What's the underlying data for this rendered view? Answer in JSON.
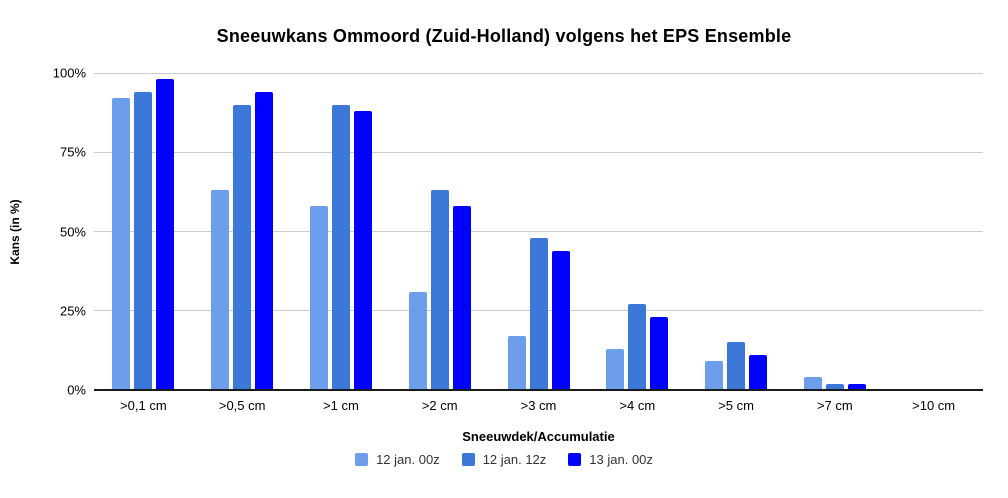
{
  "page": {
    "background": "#ffffff"
  },
  "chart_data": {
    "type": "bar",
    "title": "Sneeuwkans Ommoord (Zuid-Holland) volgens het EPS Ensemble",
    "xlabel": "Sneeuwdek/Accumulatie",
    "ylabel": "Kans (in %)",
    "categories": [
      ">0,1 cm",
      ">0,5 cm",
      ">1 cm",
      ">2 cm",
      ">3 cm",
      ">4 cm",
      ">5 cm",
      ">7 cm",
      ">10 cm"
    ],
    "series": [
      {
        "name": "12 jan. 00z",
        "color": "#6d9eeb",
        "values": [
          92,
          63,
          58,
          31,
          17,
          13,
          9,
          4,
          0
        ]
      },
      {
        "name": "12 jan. 12z",
        "color": "#3c78d8",
        "values": [
          94,
          90,
          90,
          63,
          48,
          27,
          15,
          2,
          0
        ]
      },
      {
        "name": "13 jan. 00z",
        "color": "#0000ff",
        "values": [
          98,
          94,
          88,
          58,
          44,
          23,
          11,
          2,
          0
        ]
      }
    ],
    "ylim": [
      0,
      100
    ],
    "yticks": [
      {
        "value": 0,
        "label": "0%"
      },
      {
        "value": 25,
        "label": "25%"
      },
      {
        "value": 50,
        "label": "50%"
      },
      {
        "value": 75,
        "label": "75%"
      },
      {
        "value": 100,
        "label": "100%"
      }
    ],
    "grid": true,
    "legend_position": "bottom",
    "colors": {
      "gridline": "#cccccc",
      "axis_line": "#1a1a1a",
      "axis_text": "#000000",
      "legend_text": "#333333",
      "title_text": "#000000"
    }
  }
}
